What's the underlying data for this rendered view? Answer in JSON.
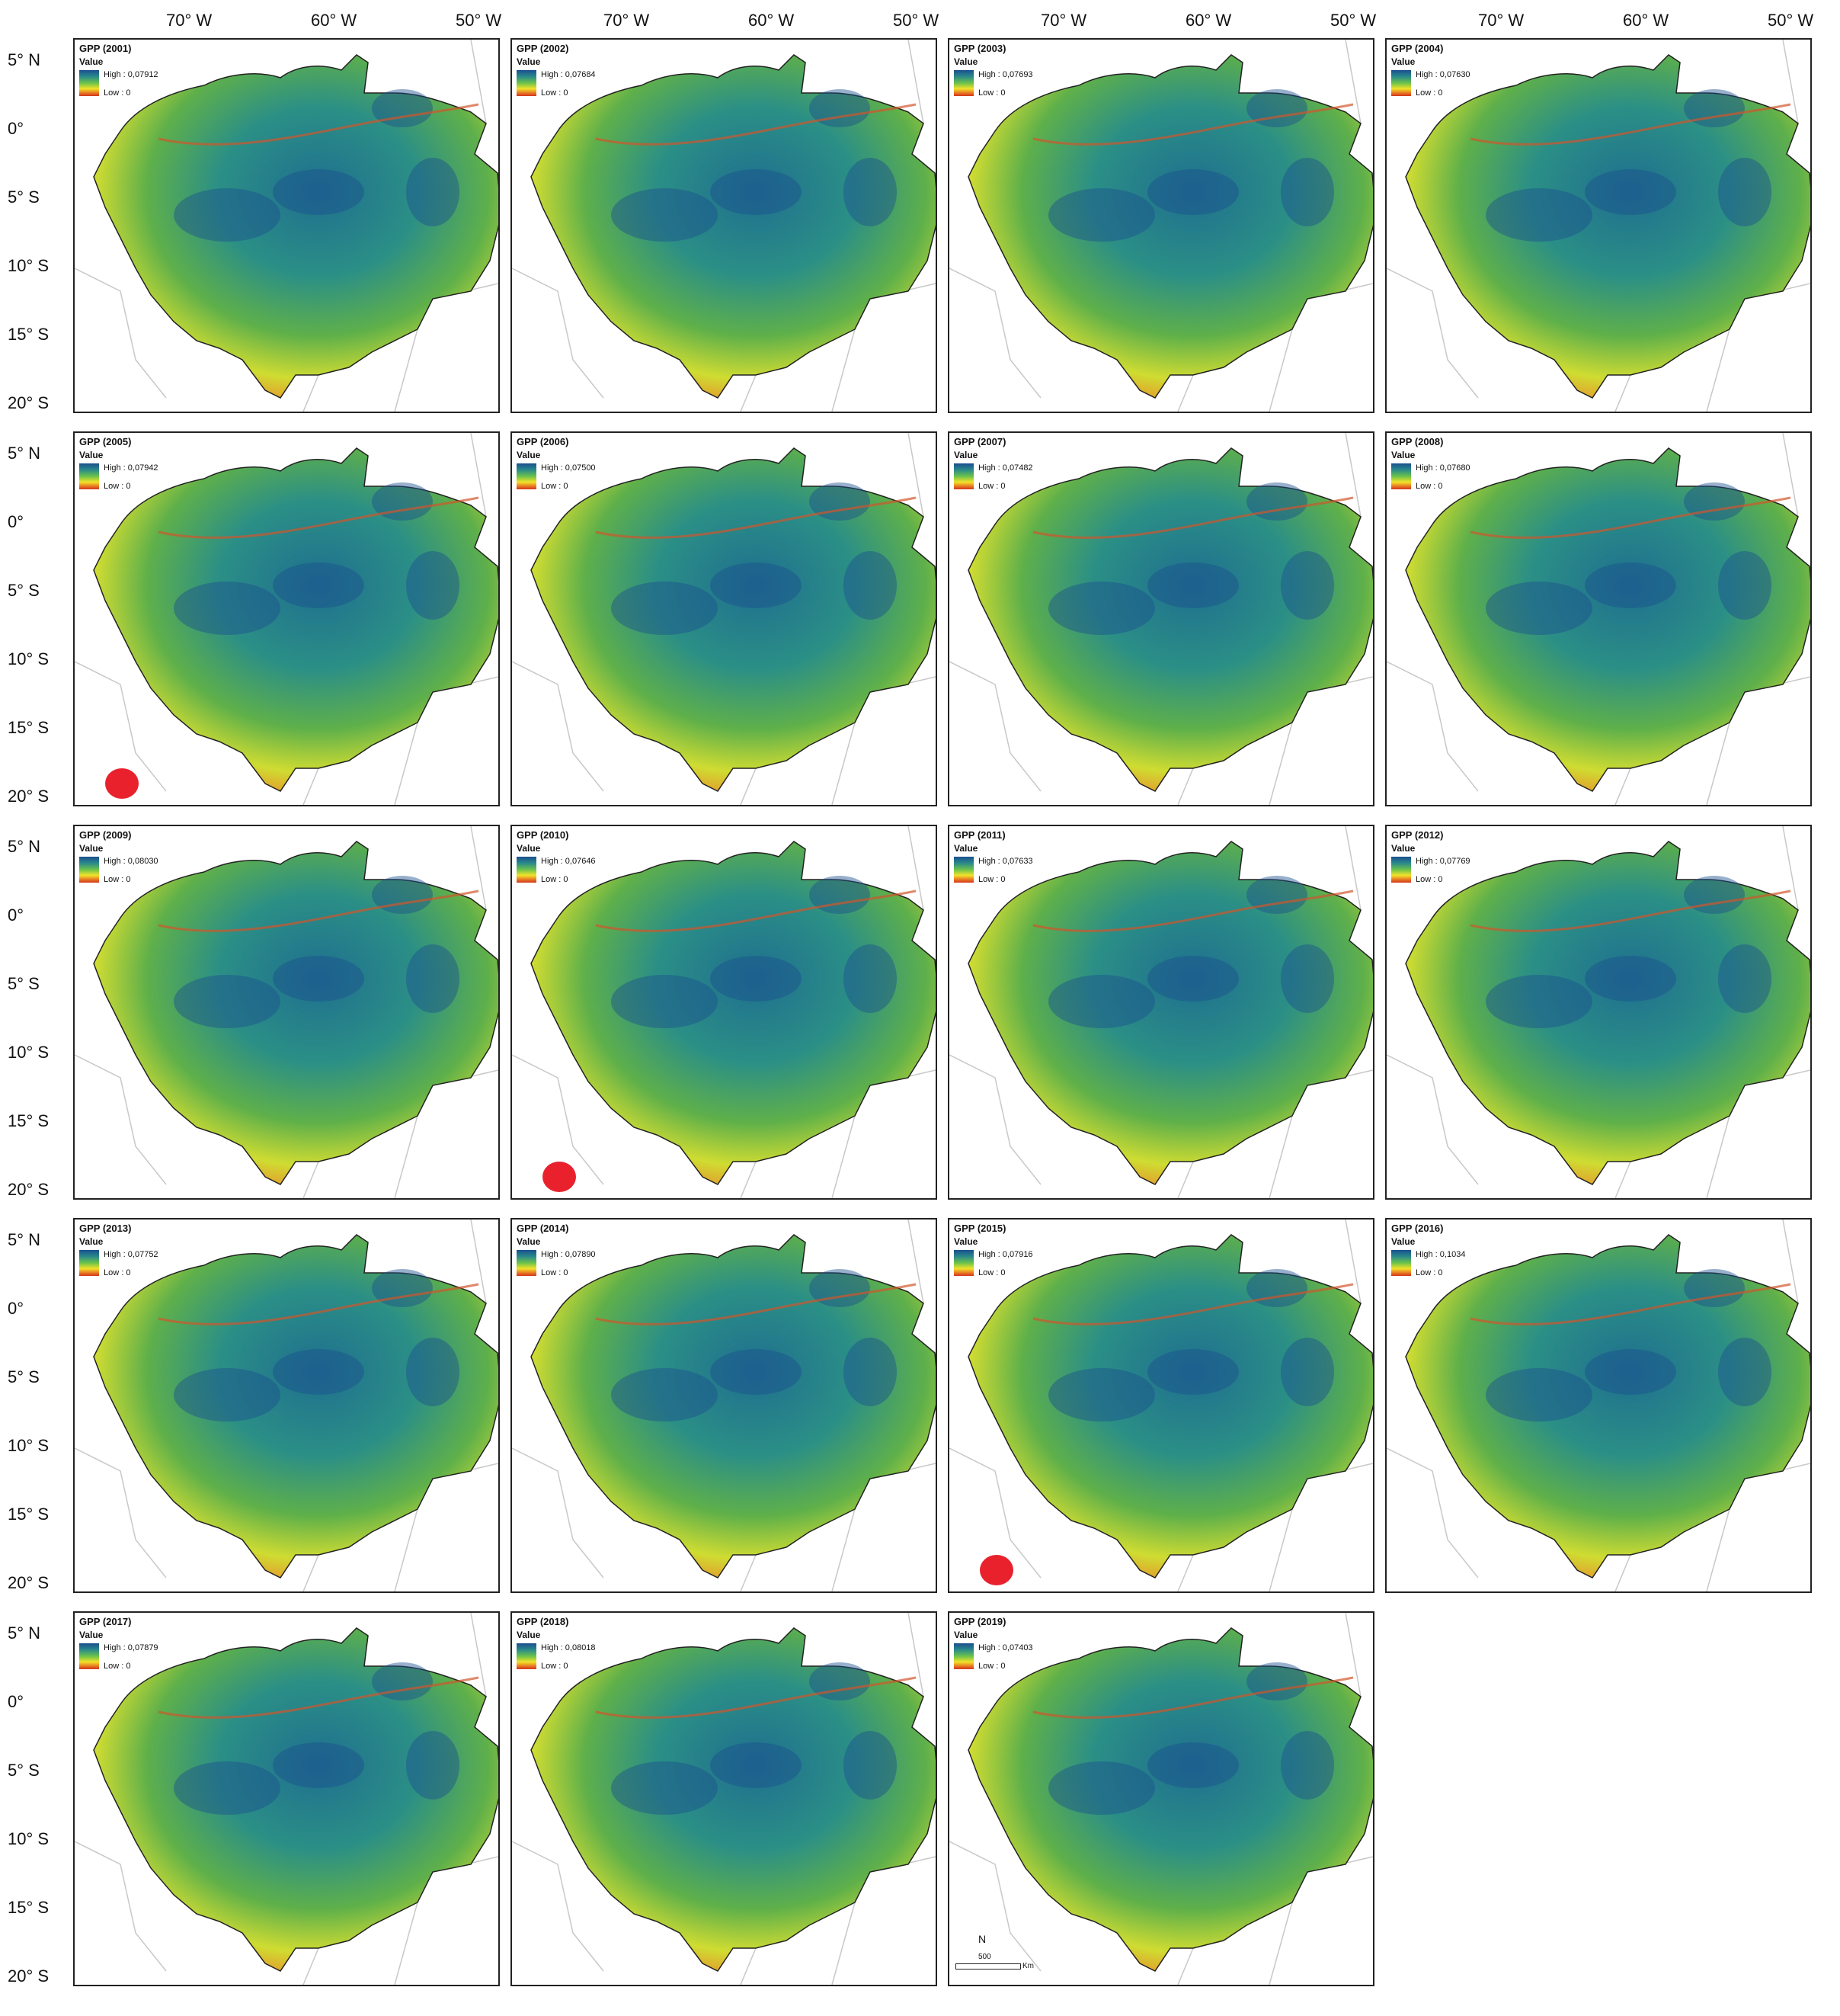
{
  "axes": {
    "longitude_labels": [
      "70° W",
      "60° W",
      "50° W"
    ],
    "latitude_labels": [
      "5° N",
      "0°",
      "5° S",
      "10° S",
      "15° S",
      "20° S"
    ]
  },
  "legend": {
    "heading": "Value",
    "high_prefix": "High : ",
    "low_label": "Low : 0",
    "colors": [
      "#1a4f8f",
      "#2a8a8a",
      "#6cc34a",
      "#f2e22a",
      "#e77a22",
      "#d2351b"
    ]
  },
  "panels": [
    {
      "title": "GPP (2001)",
      "high": "0,07912",
      "marker": false
    },
    {
      "title": "GPP (2002)",
      "high": "0,07684",
      "marker": false
    },
    {
      "title": "GPP (2003)",
      "high": "0,07693",
      "marker": false
    },
    {
      "title": "GPP (2004)",
      "high": "0,07630",
      "marker": false
    },
    {
      "title": "GPP (2005)",
      "high": "0,07942",
      "marker": true
    },
    {
      "title": "GPP (2006)",
      "high": "0,07500",
      "marker": false
    },
    {
      "title": "GPP (2007)",
      "high": "0,07482",
      "marker": false
    },
    {
      "title": "GPP (2008)",
      "high": "0,07680",
      "marker": false
    },
    {
      "title": "GPP (2009)",
      "high": "0,08030",
      "marker": false
    },
    {
      "title": "GPP (2010)",
      "high": "0,07646",
      "marker": true
    },
    {
      "title": "GPP (2011)",
      "high": "0,07633",
      "marker": false
    },
    {
      "title": "GPP (2012)",
      "high": "0,07769",
      "marker": false
    },
    {
      "title": "GPP (2013)",
      "high": "0,07752",
      "marker": false
    },
    {
      "title": "GPP (2014)",
      "high": "0,07890",
      "marker": false
    },
    {
      "title": "GPP (2015)",
      "high": "0,07916",
      "marker": true
    },
    {
      "title": "GPP (2016)",
      "high": "0,1034",
      "marker": false
    },
    {
      "title": "GPP (2017)",
      "high": "0,07879",
      "marker": false
    },
    {
      "title": "GPP (2018)",
      "high": "0,08018",
      "marker": false
    },
    {
      "title": "GPP (2019)",
      "high": "0,07403",
      "marker": false
    }
  ],
  "north_arrow": "N",
  "scale": {
    "value": "500",
    "unit": "Km"
  },
  "marker_color": "#e8212d"
}
